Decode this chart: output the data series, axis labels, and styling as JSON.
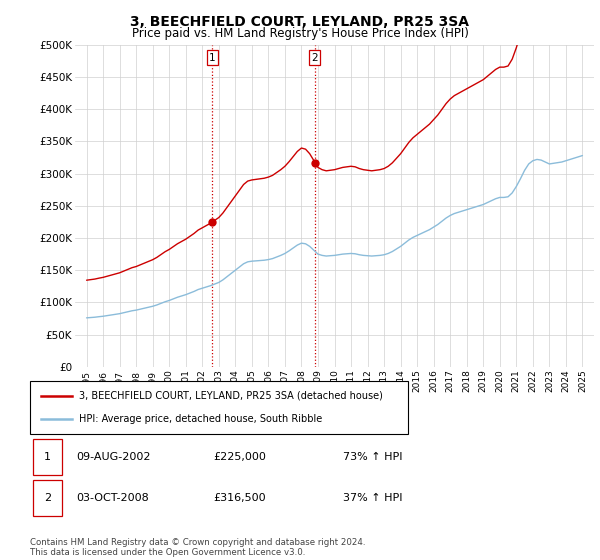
{
  "title": "3, BEECHFIELD COURT, LEYLAND, PR25 3SA",
  "subtitle": "Price paid vs. HM Land Registry's House Price Index (HPI)",
  "ylim": [
    0,
    500000
  ],
  "yticks": [
    0,
    50000,
    100000,
    150000,
    200000,
    250000,
    300000,
    350000,
    400000,
    450000,
    500000
  ],
  "ytick_labels": [
    "£0",
    "£50K",
    "£100K",
    "£150K",
    "£200K",
    "£250K",
    "£300K",
    "£350K",
    "£400K",
    "£450K",
    "£500K"
  ],
  "xlim_min": 1994.3,
  "xlim_max": 2025.7,
  "sale1_x": 2002.617,
  "sale1_y": 225000,
  "sale1_date": "09-AUG-2002",
  "sale1_price_str": "£225,000",
  "sale1_pct": "73% ↑ HPI",
  "sale2_x": 2008.792,
  "sale2_y": 316500,
  "sale2_date": "03-OCT-2008",
  "sale2_price_str": "£316,500",
  "sale2_pct": "37% ↑ HPI",
  "legend_house": "3, BEECHFIELD COURT, LEYLAND, PR25 3SA (detached house)",
  "legend_hpi": "HPI: Average price, detached house, South Ribble",
  "footnote": "Contains HM Land Registry data © Crown copyright and database right 2024.\nThis data is licensed under the Open Government Licence v3.0.",
  "line_house_color": "#cc0000",
  "line_hpi_color": "#8bbcda",
  "marker_color": "#cc0000",
  "vline_color": "#cc0000",
  "box_color": "#cc0000",
  "grid_color": "#d0d0d0",
  "hpi_years": [
    1995.0,
    1995.25,
    1995.5,
    1995.75,
    1996.0,
    1996.25,
    1996.5,
    1996.75,
    1997.0,
    1997.25,
    1997.5,
    1997.75,
    1998.0,
    1998.25,
    1998.5,
    1998.75,
    1999.0,
    1999.25,
    1999.5,
    1999.75,
    2000.0,
    2000.25,
    2000.5,
    2000.75,
    2001.0,
    2001.25,
    2001.5,
    2001.75,
    2002.0,
    2002.25,
    2002.5,
    2002.75,
    2003.0,
    2003.25,
    2003.5,
    2003.75,
    2004.0,
    2004.25,
    2004.5,
    2004.75,
    2005.0,
    2005.25,
    2005.5,
    2005.75,
    2006.0,
    2006.25,
    2006.5,
    2006.75,
    2007.0,
    2007.25,
    2007.5,
    2007.75,
    2008.0,
    2008.25,
    2008.5,
    2008.75,
    2009.0,
    2009.25,
    2009.5,
    2009.75,
    2010.0,
    2010.25,
    2010.5,
    2010.75,
    2011.0,
    2011.25,
    2011.5,
    2011.75,
    2012.0,
    2012.25,
    2012.5,
    2012.75,
    2013.0,
    2013.25,
    2013.5,
    2013.75,
    2014.0,
    2014.25,
    2014.5,
    2014.75,
    2015.0,
    2015.25,
    2015.5,
    2015.75,
    2016.0,
    2016.25,
    2016.5,
    2016.75,
    2017.0,
    2017.25,
    2017.5,
    2017.75,
    2018.0,
    2018.25,
    2018.5,
    2018.75,
    2019.0,
    2019.25,
    2019.5,
    2019.75,
    2020.0,
    2020.25,
    2020.5,
    2020.75,
    2021.0,
    2021.25,
    2021.5,
    2021.75,
    2022.0,
    2022.25,
    2022.5,
    2022.75,
    2023.0,
    2023.25,
    2023.5,
    2023.75,
    2024.0,
    2024.25,
    2024.5,
    2024.75,
    2025.0
  ],
  "hpi_values": [
    76000,
    76500,
    77000,
    77800,
    78500,
    79500,
    80500,
    81500,
    82500,
    84000,
    85500,
    87000,
    88000,
    89500,
    91000,
    92500,
    94000,
    96000,
    98500,
    101000,
    103000,
    105500,
    108000,
    110000,
    112000,
    114500,
    117000,
    120000,
    122000,
    124000,
    126000,
    128500,
    131000,
    135000,
    140000,
    145000,
    150000,
    155000,
    160000,
    163000,
    164000,
    164500,
    165000,
    165500,
    166500,
    168000,
    170500,
    173000,
    176000,
    180000,
    184500,
    189000,
    192000,
    191000,
    187000,
    181000,
    175000,
    173000,
    172000,
    172500,
    173000,
    174000,
    175000,
    175500,
    176000,
    175500,
    174000,
    173000,
    172500,
    172000,
    172500,
    173000,
    174000,
    176000,
    179000,
    183000,
    187000,
    192000,
    197000,
    201000,
    204000,
    207000,
    210000,
    213000,
    217000,
    221000,
    226000,
    231000,
    235000,
    238000,
    240000,
    242000,
    244000,
    246000,
    248000,
    250000,
    252000,
    255000,
    258000,
    261000,
    263000,
    263000,
    264000,
    270000,
    280000,
    292000,
    305000,
    315000,
    320000,
    322000,
    321000,
    318000,
    315000,
    316000,
    317000,
    318000,
    320000,
    322000,
    324000,
    326000,
    328000
  ]
}
